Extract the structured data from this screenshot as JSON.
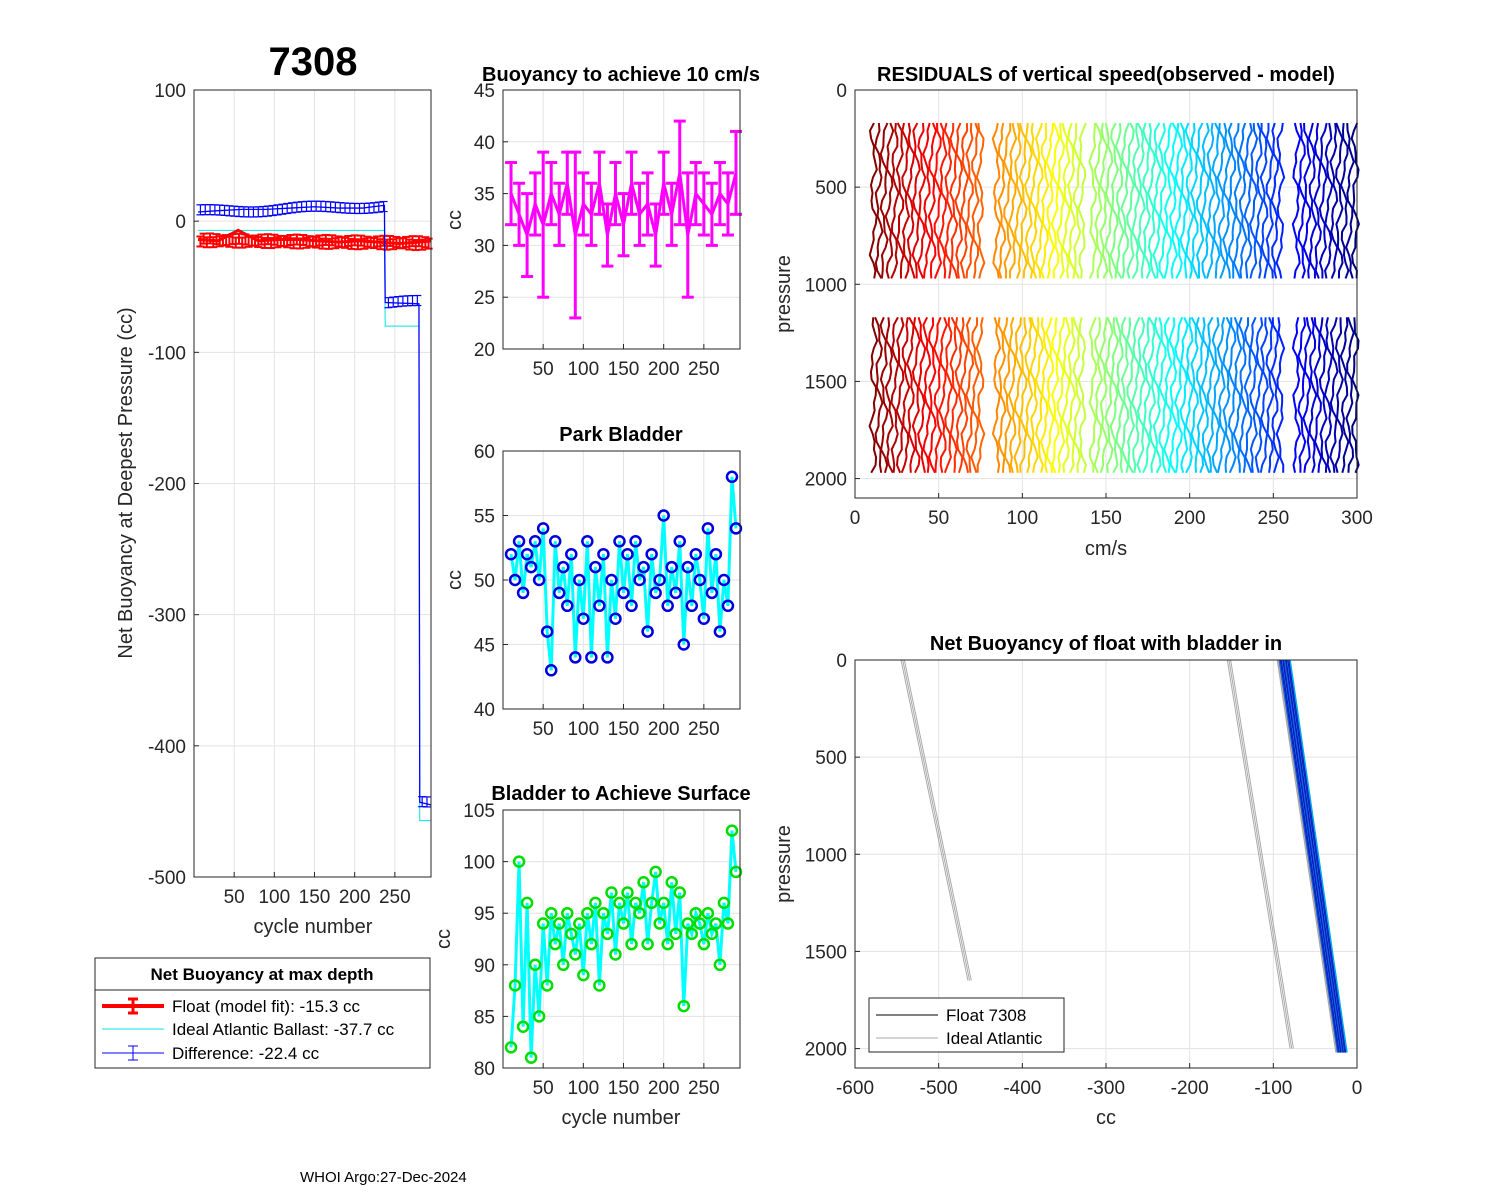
{
  "figure_title": "7308",
  "footer": "WHOI Argo:27-Dec-2024",
  "legend_main": {
    "title": "Net Buoyancy at max depth",
    "entries": [
      {
        "label": "Float (model fit): -15.3 cc",
        "color": "#ff0000"
      },
      {
        "label": "Ideal Atlantic Ballast: -37.7 cc",
        "color": "#00e5e5"
      },
      {
        "label": "Difference: -22.4 cc",
        "color": "#0000ff"
      }
    ]
  },
  "legend_profile": {
    "entries": [
      {
        "label": "Float 7308",
        "color": "#000000"
      },
      {
        "label": "Ideal Atlantic",
        "color": "#aaaaaa"
      }
    ]
  },
  "chart_data": [
    {
      "id": "net_buoyancy_deepest",
      "type": "line",
      "title": "7308",
      "xlabel": "cycle number",
      "ylabel": "Net Buoyancy at Deepest Pressure (cc)",
      "xlim": [
        0,
        295
      ],
      "ylim": [
        -500,
        100
      ],
      "xticks": [
        50,
        100,
        150,
        200,
        250
      ],
      "yticks": [
        100,
        0,
        -100,
        -200,
        -300,
        -400,
        -500
      ],
      "series": [
        {
          "name": "Float (model fit)",
          "color": "#ff0000",
          "x": [
            5,
            30,
            55,
            80,
            105,
            130,
            155,
            180,
            205,
            230,
            255,
            280,
            295
          ],
          "y": [
            -14,
            -15,
            -7,
            -15,
            -14,
            -14,
            -15,
            -16,
            -15,
            -16,
            -17,
            -16,
            -15
          ]
        },
        {
          "name": "Ideal Atlantic Ballast",
          "color": "#00e5e5",
          "x": [
            5,
            237,
            238,
            275,
            276,
            280,
            281,
            295
          ],
          "y": [
            -7,
            -7,
            -80,
            -80,
            -80,
            -80,
            -457,
            -457
          ]
        },
        {
          "name": "Difference",
          "color": "#0000ff",
          "x": [
            5,
            30,
            60,
            90,
            120,
            150,
            180,
            210,
            236,
            237,
            238,
            280,
            281,
            295
          ],
          "y": [
            7,
            8,
            9,
            9,
            10,
            11,
            10,
            10,
            12,
            12,
            -62,
            -63,
            -443,
            -445
          ]
        }
      ]
    },
    {
      "id": "buoyancy_10cms",
      "type": "line",
      "title": "Buoyancy to achieve 10 cm/s",
      "xlabel": "",
      "ylabel": "cc",
      "xlim": [
        0,
        295
      ],
      "ylim": [
        20,
        45
      ],
      "xticks": [
        50,
        100,
        150,
        200,
        250
      ],
      "yticks": [
        20,
        25,
        30,
        35,
        40,
        45
      ],
      "series": [
        {
          "name": "buoyancy",
          "color": "#ff00ff",
          "x": [
            10,
            20,
            30,
            40,
            50,
            60,
            70,
            80,
            90,
            100,
            110,
            120,
            130,
            140,
            150,
            160,
            170,
            180,
            190,
            200,
            210,
            220,
            230,
            240,
            250,
            260,
            270,
            280,
            290
          ],
          "y": [
            35,
            33,
            31,
            34,
            32,
            35,
            33,
            36,
            31,
            34,
            33,
            36,
            31,
            35,
            32,
            36,
            33,
            34,
            31,
            36,
            33,
            37,
            31,
            35,
            34,
            33,
            35,
            34,
            37
          ],
          "err": [
            3,
            3,
            4,
            3,
            7,
            3,
            3,
            3,
            8,
            3,
            3,
            3,
            3,
            3,
            3,
            3,
            3,
            3,
            3,
            3,
            3,
            5,
            6,
            3,
            3,
            3,
            3,
            3,
            4
          ]
        }
      ]
    },
    {
      "id": "park_bladder",
      "type": "line",
      "title": "Park Bladder",
      "xlabel": "",
      "ylabel": "cc",
      "xlim": [
        0,
        295
      ],
      "ylim": [
        40,
        60
      ],
      "xticks": [
        50,
        100,
        150,
        200,
        250
      ],
      "yticks": [
        40,
        45,
        50,
        55,
        60
      ],
      "series": [
        {
          "name": "park",
          "color": "#0000dd",
          "x": [
            10,
            15,
            20,
            25,
            30,
            35,
            40,
            45,
            50,
            55,
            60,
            65,
            70,
            75,
            80,
            85,
            90,
            95,
            100,
            105,
            110,
            115,
            120,
            125,
            130,
            135,
            140,
            145,
            150,
            155,
            160,
            165,
            170,
            175,
            180,
            185,
            190,
            195,
            200,
            205,
            210,
            215,
            220,
            225,
            230,
            235,
            240,
            245,
            250,
            255,
            260,
            265,
            270,
            275,
            280,
            285,
            290
          ],
          "y": [
            52,
            50,
            53,
            49,
            52,
            51,
            53,
            50,
            54,
            46,
            43,
            53,
            49,
            51,
            48,
            52,
            44,
            50,
            47,
            53,
            44,
            51,
            48,
            52,
            44,
            50,
            47,
            53,
            49,
            52,
            48,
            53,
            50,
            51,
            46,
            52,
            49,
            50,
            55,
            48,
            51,
            49,
            53,
            45,
            51,
            48,
            52,
            50,
            47,
            54,
            49,
            52,
            46,
            50,
            48,
            58,
            54
          ]
        }
      ]
    },
    {
      "id": "bladder_surface",
      "type": "line",
      "title": "Bladder to Achieve Surface",
      "xlabel": "cycle number",
      "ylabel": "cc",
      "xlim": [
        0,
        295
      ],
      "ylim": [
        80,
        105
      ],
      "xticks": [
        50,
        100,
        150,
        200,
        250
      ],
      "yticks": [
        80,
        85,
        90,
        95,
        100,
        105
      ],
      "series": [
        {
          "name": "surface",
          "color": "#00dd00",
          "x": [
            10,
            15,
            20,
            25,
            30,
            35,
            40,
            45,
            50,
            55,
            60,
            65,
            70,
            75,
            80,
            85,
            90,
            95,
            100,
            105,
            110,
            115,
            120,
            125,
            130,
            135,
            140,
            145,
            150,
            155,
            160,
            165,
            170,
            175,
            180,
            185,
            190,
            195,
            200,
            205,
            210,
            215,
            220,
            225,
            230,
            235,
            240,
            245,
            250,
            255,
            260,
            265,
            270,
            275,
            280,
            285,
            290
          ],
          "y": [
            82,
            88,
            100,
            84,
            96,
            81,
            90,
            85,
            94,
            88,
            95,
            92,
            94,
            90,
            95,
            93,
            91,
            94,
            89,
            95,
            92,
            96,
            88,
            95,
            93,
            97,
            91,
            96,
            94,
            97,
            92,
            96,
            95,
            98,
            92,
            96,
            99,
            94,
            96,
            92,
            98,
            93,
            97,
            86,
            94,
            93,
            95,
            94,
            92,
            95,
            93,
            94,
            90,
            96,
            94,
            103,
            99
          ]
        }
      ]
    },
    {
      "id": "residuals_vertical_speed",
      "type": "line",
      "title": "RESIDUALS of vertical speed(observed - model)",
      "xlabel": "cm/s",
      "ylabel": "pressure",
      "xlim": [
        0,
        300
      ],
      "ylim": [
        2100,
        0
      ],
      "xticks": [
        0,
        50,
        100,
        150,
        200,
        250,
        300
      ],
      "yticks": [
        0,
        500,
        1000,
        1500,
        2000
      ],
      "profiles_cycles": [
        10,
        300
      ],
      "pressure_segments": [
        [
          170,
          1000
        ],
        [
          1170,
          2000
        ]
      ]
    },
    {
      "id": "net_buoyancy_bladder_in",
      "type": "line",
      "title": "Net Buoyancy of float with bladder in",
      "xlabel": "cc",
      "ylabel": "pressure",
      "xlim": [
        -600,
        0
      ],
      "ylim": [
        2100,
        0
      ],
      "xticks": [
        -600,
        -500,
        -400,
        -300,
        -200,
        -100,
        0
      ],
      "yticks": [
        0,
        500,
        1000,
        1500,
        2000
      ],
      "ideal_lines": [
        {
          "x": [
            -545,
            -465
          ],
          "y": [
            0,
            1650
          ]
        },
        {
          "x": [
            -155,
            -80
          ],
          "y": [
            0,
            2000
          ]
        }
      ],
      "float_band": {
        "x_top": [
          -95,
          -80
        ],
        "x_bottom": [
          -25,
          -12
        ],
        "y": [
          0,
          2020
        ]
      }
    }
  ]
}
